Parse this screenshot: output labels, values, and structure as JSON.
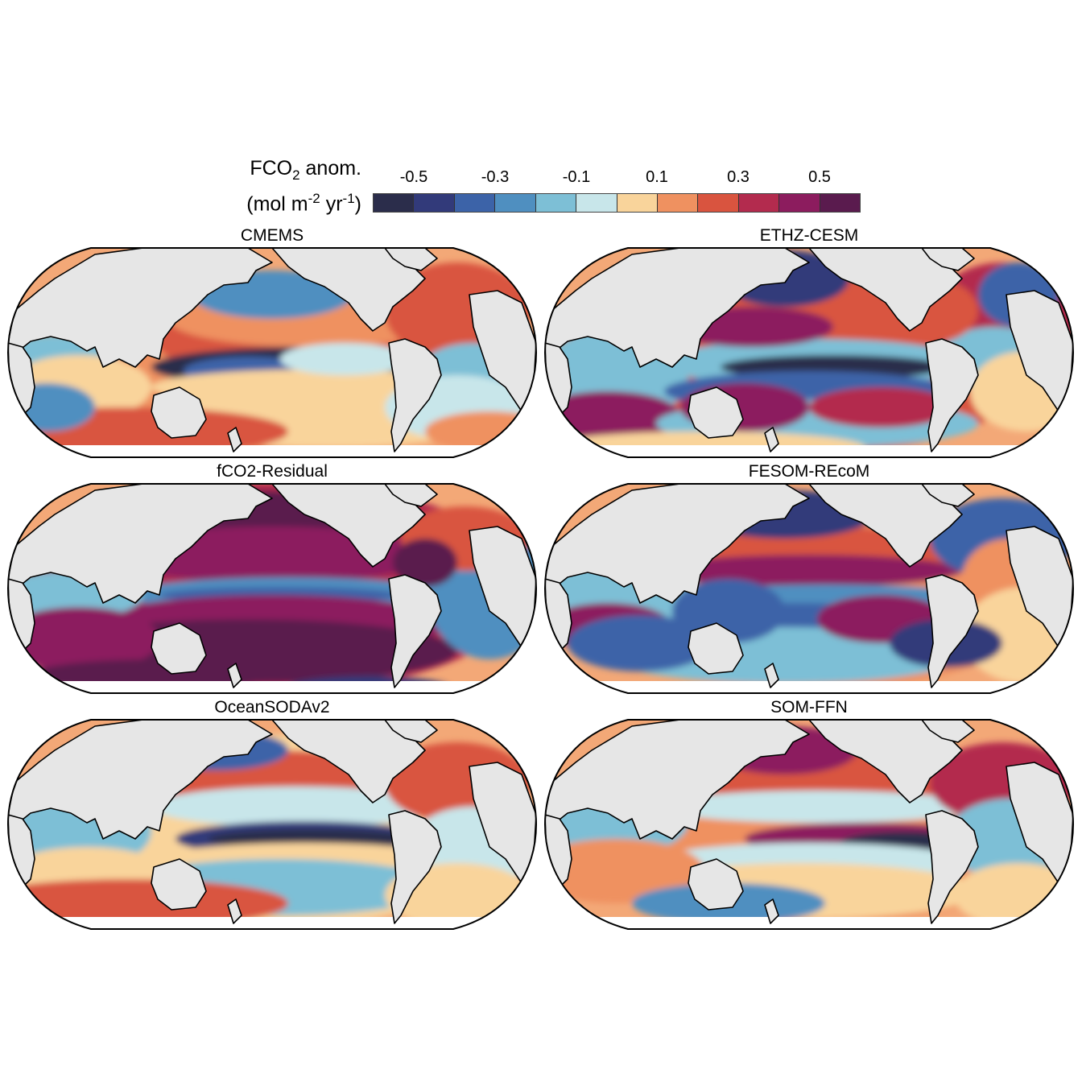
{
  "legend": {
    "title_main": "FCO",
    "title_sub": "2",
    "title_rest": " anom.",
    "units_open": "(mol m",
    "units_exp1": "-2",
    "units_mid": " yr",
    "units_exp2": "-1",
    "units_close": ")",
    "ticks": [
      "-0.5",
      "-0.3",
      "-0.1",
      "0.1",
      "0.3",
      "0.5"
    ],
    "colors": [
      "#2b2d4b",
      "#323a7a",
      "#3c63a8",
      "#4f8fc0",
      "#7dbfd6",
      "#c8e6ea",
      "#f9d49b",
      "#ef9160",
      "#d9543f",
      "#b32b4e",
      "#8c1c5e",
      "#5a1b4e"
    ]
  },
  "panels": [
    {
      "title": "CMEMS",
      "pattern": "cmems"
    },
    {
      "title": "ETHZ-CESM",
      "pattern": "ethz"
    },
    {
      "title": "fCO2-Residual",
      "pattern": "residual"
    },
    {
      "title": "FESOM-REcoM",
      "pattern": "fesom"
    },
    {
      "title": "OceanSODAv2",
      "pattern": "soda"
    },
    {
      "title": "SOM-FFN",
      "pattern": "somffn"
    }
  ],
  "land_color": "#e6e6e6",
  "ocean_base_color": "#f3a877"
}
